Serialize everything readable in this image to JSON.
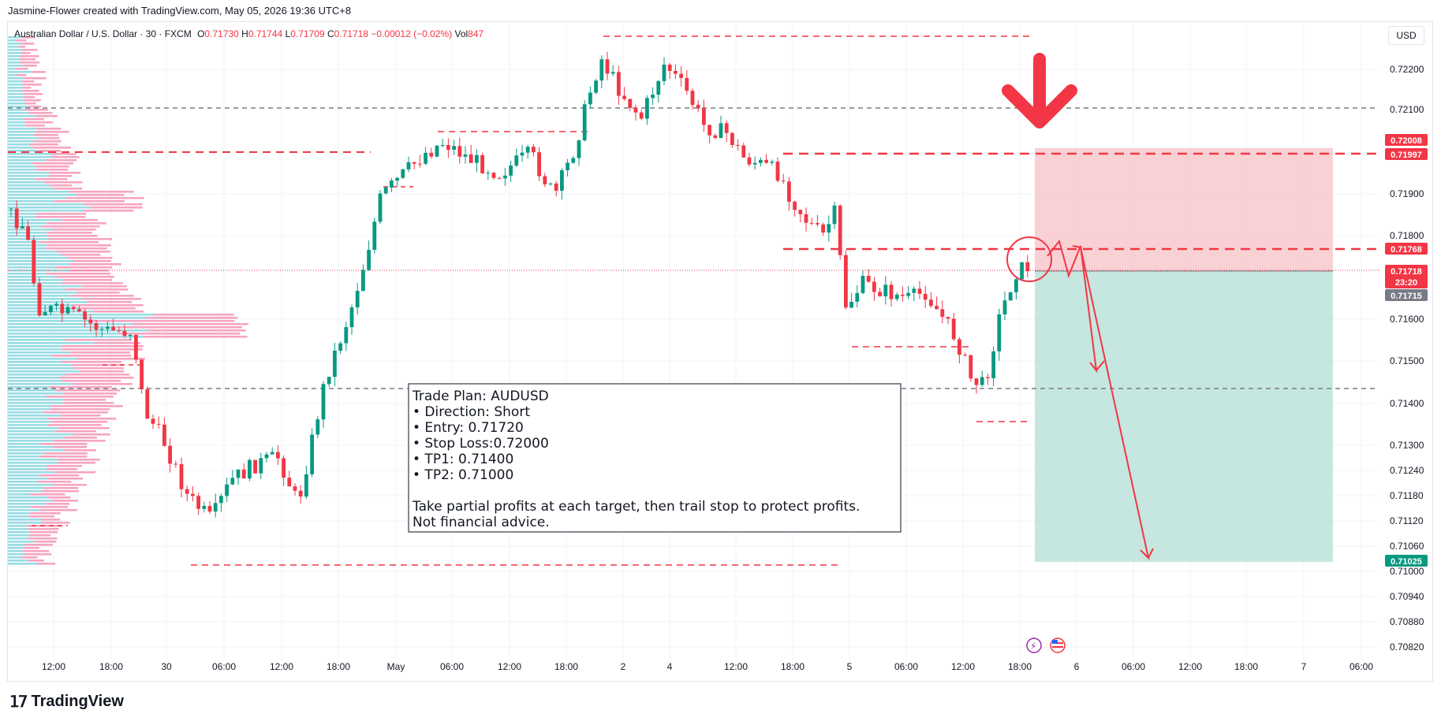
{
  "credit": "Jasmine-Flower created with TradingView.com, May 05, 2026 19:36 UTC+8",
  "legend": {
    "symbol": "Australian Dollar / U.S. Dollar · 30 · FXCM",
    "open_label": "O",
    "open": "0.71730",
    "high_label": "H",
    "high": "0.71744",
    "low_label": "L",
    "low": "0.71709",
    "close_label": "C",
    "close": "0.71718",
    "change": "−0.00012 (−0.02%)",
    "vol_label": "Vol",
    "vol": "847"
  },
  "currency": "USD",
  "footer_logo": "TradingView",
  "colors": {
    "up": "#089981",
    "down": "#f23645",
    "profit_zone": "#b2dfd4",
    "stop_zone": "#f8c9cc",
    "annotation": "#f23645",
    "grey_line": "#787b86"
  },
  "note": {
    "lines": [
      "Trade Plan: AUDUSD",
      "• Direction: Short",
      "• Entry: 0.71720",
      "• Stop Loss:0.72000",
      "• TP1: 0.71400",
      "• TP2: 0.71000",
      "",
      "Take partial profits at each target, then trail stop to protect profits.",
      "Not financial advice."
    ]
  },
  "chart_data": {
    "type": "candlestick",
    "symbol": "AUDUSD",
    "timeframe": "30",
    "y_ticks": [
      "0.72200",
      "0.72100",
      "0.71900",
      "0.71800",
      "0.71600",
      "0.71500",
      "0.71400",
      "0.71300",
      "0.71240",
      "0.71180",
      "0.71120",
      "0.71060",
      "0.71000",
      "0.70940",
      "0.70880",
      "0.70820"
    ],
    "x_ticks": [
      "12:00",
      "18:00",
      "30",
      "06:00",
      "12:00",
      "18:00",
      "May",
      "06:00",
      "12:00",
      "18:00",
      "2",
      "4",
      "12:00",
      "18:00",
      "5",
      "06:00",
      "12:00",
      "18:00",
      "6",
      "06:00",
      "12:00",
      "18:00",
      "7",
      "06:00"
    ],
    "price_tags": [
      {
        "value": "0.72008",
        "color": "#f23645"
      },
      {
        "value": "0.71997",
        "color": "#f23645"
      },
      {
        "value": "0.71768",
        "color": "#f23645"
      },
      {
        "value": "0.71718",
        "sub": "23:20",
        "color": "#f23645"
      },
      {
        "value": "0.71715",
        "color": "#787b86"
      },
      {
        "value": "0.71025",
        "color": "#089981"
      }
    ],
    "levels": {
      "stop_loss": 0.72008,
      "resistance_upper": 0.71997,
      "resistance_lower": 0.71768,
      "entry": 0.71718,
      "take_profit": 0.71025,
      "grey_upper": 0.72104,
      "grey_lower": 0.71441
    },
    "trade": {
      "direction": "Short",
      "entry": 0.7172,
      "stop_loss": 0.72,
      "tp1": 0.714,
      "tp2": 0.71
    },
    "current_price": 0.71718
  }
}
